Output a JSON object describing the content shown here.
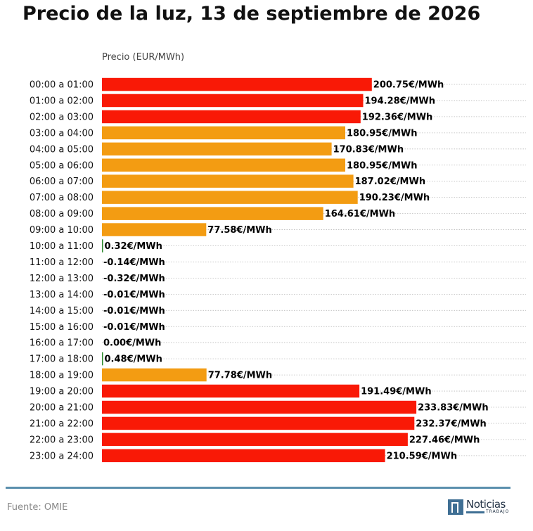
{
  "title": "Precio de la luz, 13 de septiembre de 2026",
  "subtitle": "Precio (EUR/MWh)",
  "source": "Fuente: OMIE",
  "logo": {
    "name": "Noticias",
    "tagline": "TRABAJO"
  },
  "colors": {
    "high": "#f91906",
    "medium": "#f39c12",
    "low": "#2e8b2e",
    "gridline": "#bbbbbb",
    "rule": "#5b8fad"
  },
  "chart_data": {
    "type": "bar",
    "orientation": "horizontal",
    "title": "Precio de la luz, 13 de septiembre de 2026",
    "xlabel": "Precio (EUR/MWh)",
    "ylabel": "",
    "unit_suffix": "€/MWh",
    "categories": [
      "00:00 a 01:00",
      "01:00 a 02:00",
      "02:00 a 03:00",
      "03:00 a 04:00",
      "04:00 a 05:00",
      "05:00 a 06:00",
      "06:00 a 07:00",
      "07:00 a 08:00",
      "08:00 a 09:00",
      "09:00 a 10:00",
      "10:00 a 11:00",
      "11:00 a 12:00",
      "12:00 a 13:00",
      "13:00 a 14:00",
      "14:00 a 15:00",
      "15:00 a 16:00",
      "16:00 a 17:00",
      "17:00 a 18:00",
      "18:00 a 19:00",
      "19:00 a 20:00",
      "20:00 a 21:00",
      "21:00 a 22:00",
      "22:00 a 23:00",
      "23:00 a 24:00"
    ],
    "values": [
      200.75,
      194.28,
      192.36,
      180.95,
      170.83,
      180.95,
      187.02,
      190.23,
      164.61,
      77.58,
      0.32,
      -0.14,
      -0.32,
      -0.01,
      -0.01,
      -0.01,
      0.0,
      0.48,
      77.78,
      191.49,
      233.83,
      232.37,
      227.46,
      210.59
    ],
    "labels": [
      "200.75€/MWh",
      "194.28€/MWh",
      "192.36€/MWh",
      "180.95€/MWh",
      "170.83€/MWh",
      "180.95€/MWh",
      "187.02€/MWh",
      "190.23€/MWh",
      "164.61€/MWh",
      "77.58€/MWh",
      "0.32€/MWh",
      "-0.14€/MWh",
      "-0.32€/MWh",
      "-0.01€/MWh",
      "-0.01€/MWh",
      "-0.01€/MWh",
      "0.00€/MWh",
      "0.48€/MWh",
      "77.78€/MWh",
      "191.49€/MWh",
      "233.83€/MWh",
      "232.37€/MWh",
      "227.46€/MWh",
      "210.59€/MWh"
    ],
    "bar_colors": [
      "high",
      "high",
      "high",
      "medium",
      "medium",
      "medium",
      "medium",
      "medium",
      "medium",
      "medium",
      "low",
      "low",
      "low",
      "low",
      "low",
      "low",
      "low",
      "low",
      "medium",
      "high",
      "high",
      "high",
      "high",
      "high"
    ],
    "xlim": [
      0,
      315
    ],
    "grid": "horizontal dotted",
    "legend": "none"
  }
}
